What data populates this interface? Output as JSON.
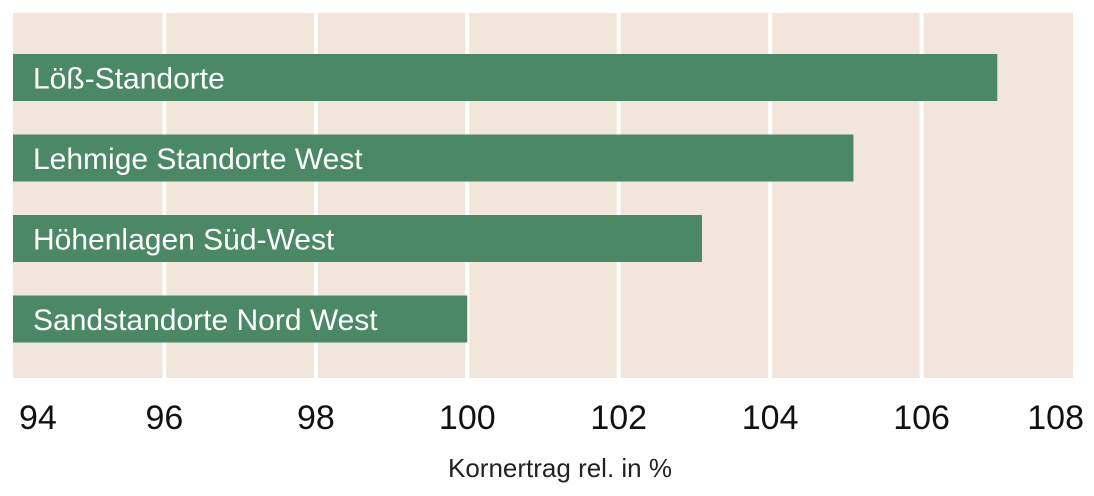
{
  "chart_data": {
    "type": "bar",
    "orientation": "horizontal",
    "title": "",
    "xlabel": "Kornertrag rel. in %",
    "ylabel": "",
    "xlim": [
      94,
      108
    ],
    "xticks": [
      94,
      96,
      98,
      100,
      102,
      104,
      106,
      108
    ],
    "grid": true,
    "categories": [
      "Löß-Standorte",
      "Lehmige Standorte West",
      "Höhenlagen Süd-West",
      "Sandstandorte Nord West"
    ],
    "values": [
      107,
      105.1,
      103.1,
      100
    ],
    "colors": {
      "bar": "#4a8866",
      "background": "#f2e6dc",
      "grid": "#ffffff"
    }
  }
}
